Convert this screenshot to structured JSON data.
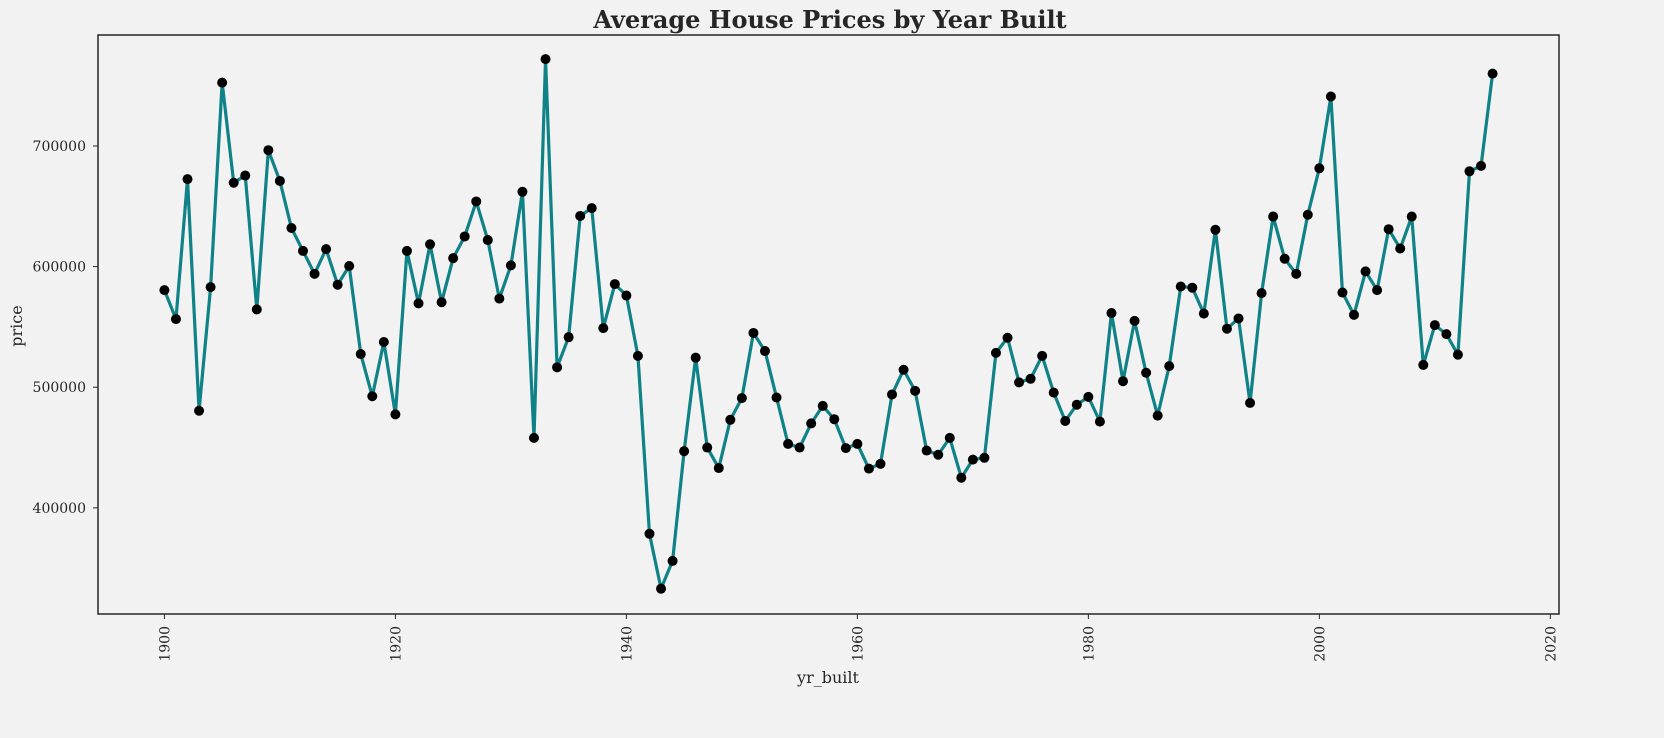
{
  "chart_data": {
    "type": "line",
    "title": "Average House Prices by Year Built",
    "xlabel": "yr_built",
    "ylabel": "price",
    "xlim": [
      1894.25,
      2020.75
    ],
    "ylim": [
      312000,
      792000
    ],
    "xticks": [
      1900,
      1920,
      1940,
      1960,
      1980,
      2000,
      2020
    ],
    "yticks": [
      400000,
      500000,
      600000,
      700000
    ],
    "grid": false,
    "legend": "none",
    "line_color": "#0e8287",
    "marker_color": "#000000",
    "series": [
      {
        "x": [
          1900,
          1901,
          1902,
          1903,
          1904,
          1905,
          1906,
          1907,
          1908,
          1909,
          1910,
          1911,
          1912,
          1913,
          1914,
          1915,
          1916,
          1917,
          1918,
          1919,
          1920,
          1921,
          1922,
          1923,
          1924,
          1925,
          1926,
          1927,
          1928,
          1929,
          1930,
          1931,
          1932,
          1933,
          1934,
          1935,
          1936,
          1937,
          1938,
          1939,
          1940,
          1941,
          1942,
          1943,
          1944,
          1945,
          1946,
          1947,
          1948,
          1949,
          1950,
          1951,
          1952,
          1953,
          1954,
          1955,
          1956,
          1957,
          1958,
          1959,
          1960,
          1961,
          1962,
          1963,
          1964,
          1965,
          1966,
          1967,
          1968,
          1969,
          1970,
          1971,
          1972,
          1973,
          1974,
          1975,
          1976,
          1977,
          1978,
          1979,
          1980,
          1981,
          1982,
          1983,
          1984,
          1985,
          1986,
          1987,
          1988,
          1989,
          1990,
          1991,
          1992,
          1993,
          1994,
          1995,
          1996,
          1997,
          1998,
          1999,
          2000,
          2001,
          2002,
          2003,
          2004,
          2005,
          2006,
          2007,
          2008,
          2009,
          2010,
          2011,
          2012,
          2013,
          2014,
          2015
        ],
        "y": [
          580500,
          556500,
          672500,
          480500,
          583000,
          752500,
          669500,
          675500,
          564500,
          696500,
          671000,
          632000,
          613000,
          594000,
          614500,
          585000,
          600500,
          527500,
          492500,
          537500,
          477500,
          613000,
          569500,
          618500,
          570500,
          607000,
          625000,
          654000,
          622000,
          573500,
          601000,
          662000,
          458000,
          772000,
          516500,
          541500,
          642000,
          648500,
          549000,
          585500,
          576000,
          526000,
          378500,
          333000,
          356000,
          447000,
          524500,
          450000,
          433000,
          473000,
          491000,
          545000,
          530000,
          491500,
          453000,
          450000,
          470000,
          484500,
          473500,
          449500,
          453000,
          432500,
          436500,
          494000,
          514500,
          497000,
          447500,
          444000,
          458000,
          425000,
          440000,
          441500,
          528500,
          541000,
          504000,
          507000,
          526000,
          495500,
          472000,
          485500,
          492000,
          471500,
          561500,
          505000,
          555000,
          512000,
          476500,
          517500,
          583500,
          582500,
          561000,
          630500,
          548500,
          557000,
          487000,
          578000,
          641500,
          606500,
          594000,
          643000,
          681500,
          741000,
          578500,
          560000,
          596000,
          580500,
          631000,
          615000,
          641500,
          518500,
          551500,
          544000,
          527000,
          679000,
          683500,
          760000
        ]
      }
    ]
  }
}
